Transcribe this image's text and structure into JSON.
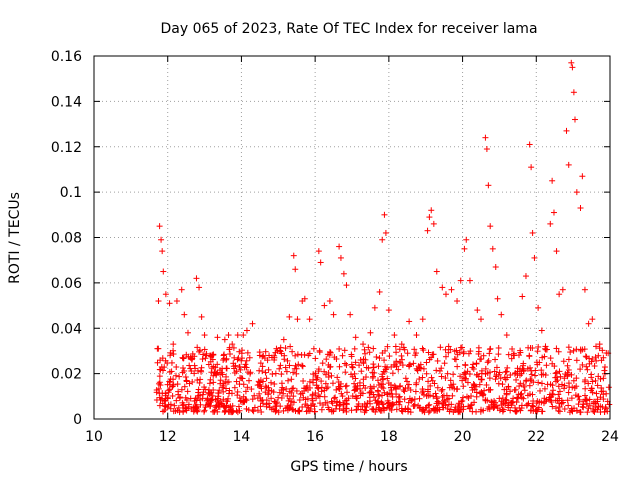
{
  "chart_data": {
    "type": "scatter",
    "title": "Day 065 of 2023, Rate Of TEC Index for receiver lama",
    "xlabel": "GPS time / hours",
    "ylabel": "ROTI / TECUs",
    "xlim": [
      10,
      24
    ],
    "ylim": [
      0,
      0.16
    ],
    "xticks": [
      "10",
      "12",
      "14",
      "16",
      "18",
      "20",
      "22",
      "24"
    ],
    "yticks": [
      "0",
      "0.02",
      "0.04",
      "0.06",
      "0.08",
      "0.1",
      "0.12",
      "0.14",
      "0.16"
    ],
    "grid": true,
    "marker": "plus",
    "color": "#ff0000",
    "series": [
      {
        "points": [
          [
            11.72,
            0.031
          ],
          [
            11.75,
            0.052
          ],
          [
            11.78,
            0.085
          ],
          [
            11.82,
            0.079
          ],
          [
            11.85,
            0.074
          ],
          [
            11.88,
            0.065
          ],
          [
            11.95,
            0.055
          ],
          [
            12.05,
            0.051
          ],
          [
            12.15,
            0.033
          ],
          [
            12.25,
            0.052
          ],
          [
            12.38,
            0.057
          ],
          [
            12.45,
            0.046
          ],
          [
            12.55,
            0.038
          ],
          [
            12.62,
            0.027
          ],
          [
            12.78,
            0.062
          ],
          [
            12.85,
            0.058
          ],
          [
            12.92,
            0.045
          ],
          [
            13.0,
            0.037
          ],
          [
            13.15,
            0.028
          ],
          [
            13.35,
            0.036
          ],
          [
            13.55,
            0.035
          ],
          [
            13.65,
            0.037
          ],
          [
            13.75,
            0.033
          ],
          [
            13.9,
            0.037
          ],
          [
            14.05,
            0.037
          ],
          [
            14.15,
            0.039
          ],
          [
            14.3,
            0.042
          ],
          [
            14.5,
            0.028
          ],
          [
            14.75,
            0.028
          ],
          [
            14.95,
            0.031
          ],
          [
            15.15,
            0.035
          ],
          [
            15.3,
            0.045
          ],
          [
            15.42,
            0.072
          ],
          [
            15.46,
            0.066
          ],
          [
            15.52,
            0.044
          ],
          [
            15.65,
            0.052
          ],
          [
            15.72,
            0.053
          ],
          [
            15.85,
            0.044
          ],
          [
            16.1,
            0.074
          ],
          [
            16.15,
            0.069
          ],
          [
            16.25,
            0.05
          ],
          [
            16.4,
            0.052
          ],
          [
            16.5,
            0.046
          ],
          [
            16.65,
            0.076
          ],
          [
            16.7,
            0.071
          ],
          [
            16.78,
            0.064
          ],
          [
            16.85,
            0.059
          ],
          [
            16.95,
            0.046
          ],
          [
            17.1,
            0.036
          ],
          [
            17.3,
            0.033
          ],
          [
            17.5,
            0.038
          ],
          [
            17.62,
            0.049
          ],
          [
            17.75,
            0.056
          ],
          [
            17.82,
            0.079
          ],
          [
            17.88,
            0.09
          ],
          [
            17.92,
            0.082
          ],
          [
            18.0,
            0.048
          ],
          [
            18.15,
            0.037
          ],
          [
            18.35,
            0.033
          ],
          [
            18.55,
            0.043
          ],
          [
            18.75,
            0.037
          ],
          [
            18.92,
            0.044
          ],
          [
            19.05,
            0.083
          ],
          [
            19.1,
            0.089
          ],
          [
            19.15,
            0.092
          ],
          [
            19.22,
            0.086
          ],
          [
            19.3,
            0.065
          ],
          [
            19.45,
            0.058
          ],
          [
            19.55,
            0.055
          ],
          [
            19.7,
            0.057
          ],
          [
            19.85,
            0.052
          ],
          [
            19.95,
            0.061
          ],
          [
            20.05,
            0.075
          ],
          [
            20.1,
            0.079
          ],
          [
            20.2,
            0.061
          ],
          [
            20.4,
            0.048
          ],
          [
            20.5,
            0.044
          ],
          [
            20.62,
            0.124
          ],
          [
            20.66,
            0.119
          ],
          [
            20.7,
            0.103
          ],
          [
            20.75,
            0.085
          ],
          [
            20.82,
            0.075
          ],
          [
            20.9,
            0.067
          ],
          [
            20.95,
            0.053
          ],
          [
            21.05,
            0.046
          ],
          [
            21.2,
            0.037
          ],
          [
            21.4,
            0.028
          ],
          [
            21.62,
            0.054
          ],
          [
            21.72,
            0.063
          ],
          [
            21.82,
            0.121
          ],
          [
            21.86,
            0.111
          ],
          [
            21.9,
            0.082
          ],
          [
            21.95,
            0.071
          ],
          [
            22.05,
            0.049
          ],
          [
            22.15,
            0.039
          ],
          [
            22.25,
            0.032
          ],
          [
            22.38,
            0.086
          ],
          [
            22.43,
            0.105
          ],
          [
            22.48,
            0.091
          ],
          [
            22.55,
            0.074
          ],
          [
            22.62,
            0.055
          ],
          [
            22.72,
            0.057
          ],
          [
            22.82,
            0.127
          ],
          [
            22.88,
            0.112
          ],
          [
            22.95,
            0.157
          ],
          [
            22.98,
            0.155
          ],
          [
            23.02,
            0.144
          ],
          [
            23.05,
            0.132
          ],
          [
            23.1,
            0.1
          ],
          [
            23.2,
            0.093
          ],
          [
            23.25,
            0.107
          ],
          [
            23.32,
            0.057
          ],
          [
            23.42,
            0.042
          ],
          [
            23.52,
            0.044
          ],
          [
            23.62,
            0.032
          ],
          [
            23.72,
            0.033
          ],
          [
            23.82,
            0.027
          ],
          [
            23.95,
            0.029
          ]
        ]
      }
    ],
    "baseline_band": {
      "x_start": 11.7,
      "x_end": 24.0,
      "y_min": 0.003,
      "y_max": 0.032,
      "density": "dense"
    }
  }
}
